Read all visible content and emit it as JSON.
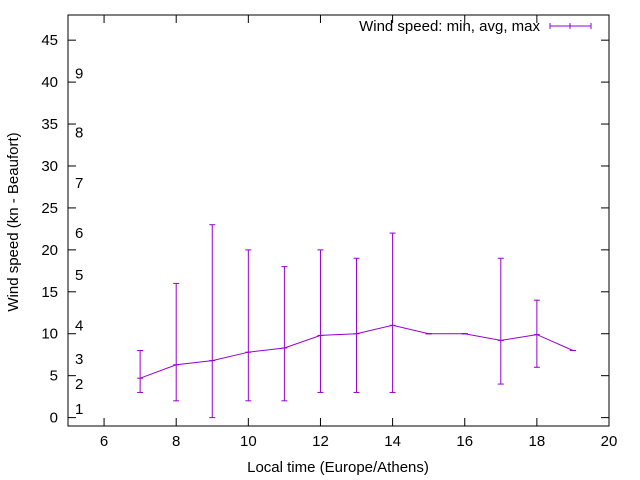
{
  "chart_data": {
    "type": "line",
    "title": "",
    "xlabel": "Local time (Europe/Athens)",
    "ylabel": "Wind speed (kn - Beaufort)",
    "xlim": [
      5,
      20
    ],
    "ylim": [
      -1,
      48
    ],
    "x_ticks": [
      6,
      8,
      10,
      12,
      14,
      16,
      18,
      20
    ],
    "y_ticks": [
      0,
      5,
      10,
      15,
      20,
      25,
      30,
      35,
      40,
      45
    ],
    "beaufort_labels": [
      {
        "label": "1",
        "y": 1
      },
      {
        "label": "2",
        "y": 4
      },
      {
        "label": "3",
        "y": 7
      },
      {
        "label": "4",
        "y": 11
      },
      {
        "label": "5",
        "y": 17
      },
      {
        "label": "6",
        "y": 22
      },
      {
        "label": "7",
        "y": 28
      },
      {
        "label": "8",
        "y": 34
      },
      {
        "label": "9",
        "y": 41
      }
    ],
    "legend": {
      "label": "Wind speed: min, avg, max",
      "position": "top-right"
    },
    "series": [
      {
        "name": "Wind speed: min, avg, max",
        "color": "#9400d3",
        "points": [
          {
            "x": 7,
            "min": 3,
            "avg": 4.7,
            "max": 8
          },
          {
            "x": 8,
            "min": 2,
            "avg": 6.3,
            "max": 16
          },
          {
            "x": 9,
            "min": 0,
            "avg": 6.8,
            "max": 23
          },
          {
            "x": 10,
            "min": 2,
            "avg": 7.8,
            "max": 20
          },
          {
            "x": 11,
            "min": 2,
            "avg": 8.3,
            "max": 18
          },
          {
            "x": 12,
            "min": 3,
            "avg": 9.8,
            "max": 20
          },
          {
            "x": 13,
            "min": 3,
            "avg": 10,
            "max": 19
          },
          {
            "x": 14,
            "min": 3,
            "avg": 11,
            "max": 22
          },
          {
            "x": 15,
            "min": 10,
            "avg": 10,
            "max": 10
          },
          {
            "x": 16,
            "min": 10,
            "avg": 10,
            "max": 10
          },
          {
            "x": 17,
            "min": 4,
            "avg": 9.2,
            "max": 19
          },
          {
            "x": 18,
            "min": 6,
            "avg": 9.9,
            "max": 14
          },
          {
            "x": 19,
            "min": 8,
            "avg": 8,
            "max": 8
          }
        ]
      }
    ]
  }
}
